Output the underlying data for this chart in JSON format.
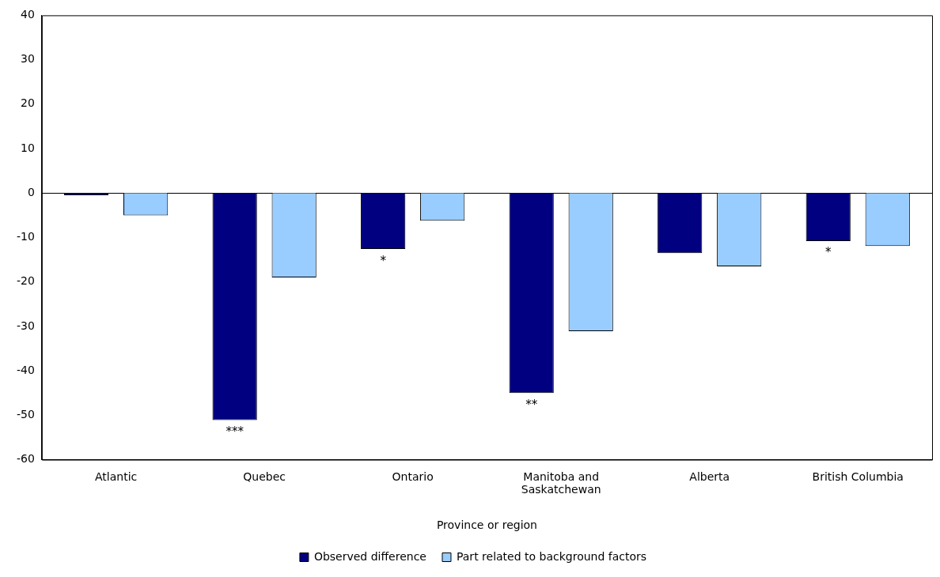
{
  "chart_data": {
    "type": "bar",
    "xlabel": "Province or region",
    "categories": [
      "Atlantic",
      "Quebec",
      "Ontario",
      "Manitoba and Saskatchewan",
      "Alberta",
      "British Columbia"
    ],
    "series": [
      {
        "name": "Observed difference",
        "color": "#000080",
        "values": [
          -0.5,
          -51.1,
          -12.6,
          -45,
          -13.5,
          -10.8
        ],
        "value_labels": [
          null,
          "***",
          "*",
          "**",
          null,
          "*"
        ]
      },
      {
        "name": "Part related to background factors",
        "color": "#99ccff",
        "values": [
          -5,
          -19,
          -6.2,
          -31.1,
          -16.5,
          -11.9
        ]
      }
    ],
    "ylim": [
      -60,
      40
    ],
    "yticks": [
      -60,
      -50,
      -40,
      -30,
      -20,
      -10,
      0,
      10,
      20,
      30,
      40
    ],
    "legend": "bottom"
  }
}
